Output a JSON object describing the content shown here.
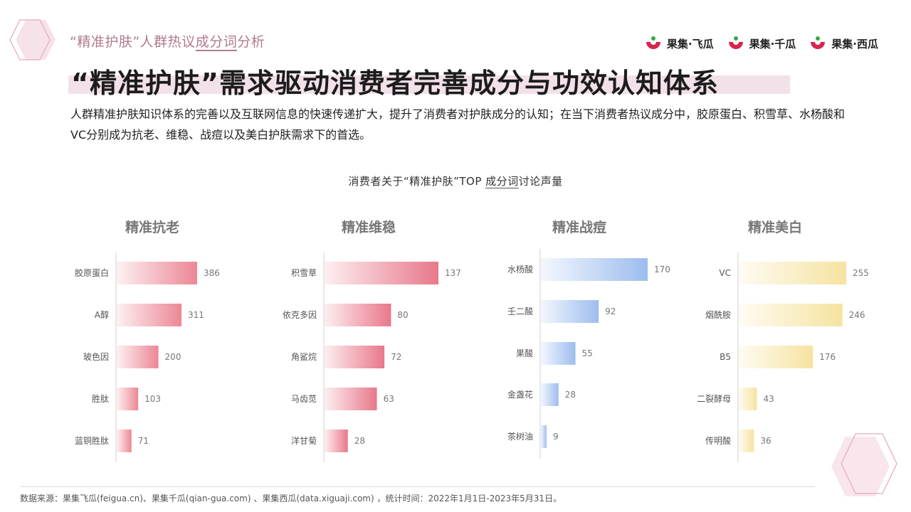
{
  "header": {
    "subtitle_pre": "“精准护肤”人群热议",
    "subtitle_underlined": "成分词",
    "subtitle_post": "分析",
    "headline": "“精准护肤”需求驱动消费者完善成分与功效认知体系",
    "description": "人群精准护肤知识体系的完善以及互联网信息的快速传递扩大，提升了消费者对护肤成分的认知；在当下消费者热议成分中，胶原蛋白、积雪草、水杨酸和VC分别成为抗老、维稳、战痘以及美白护肤需求下的首选。"
  },
  "brands": [
    {
      "label": "果集·飞瓜"
    },
    {
      "label": "果集·千瓜"
    },
    {
      "label": "果集·西瓜"
    }
  ],
  "colors": {
    "accent": "#d6264f",
    "pink_bar": "#ec8795",
    "blue_bar": "#9dbdef",
    "yellow_bar": "#f6e3a0"
  },
  "chart_header": {
    "pre": "消费者关于“精准护肤”TOP ",
    "underlined": "成分词",
    "post": "讨论声量"
  },
  "chart_data": [
    {
      "type": "bar",
      "title": "精准抗老",
      "categories": [
        "胶原蛋白",
        "A醇",
        "玻色因",
        "胜肽",
        "蓝铜胜肽"
      ],
      "values": [
        386,
        311,
        200,
        103,
        71
      ],
      "color": "#ec8795"
    },
    {
      "type": "bar",
      "title": "精准维稳",
      "categories": [
        "积雪草",
        "依克多因",
        "角鲨烷",
        "马齿苋",
        "洋甘菊"
      ],
      "values": [
        137,
        80,
        72,
        63,
        28
      ],
      "color": "#e8788a"
    },
    {
      "type": "bar",
      "title": "精准战痘",
      "categories": [
        "水杨酸",
        "壬二酸",
        "果酸",
        "金盏花",
        "茶树油"
      ],
      "values": [
        170,
        92,
        55,
        28,
        9
      ],
      "color": "#9dbdef"
    },
    {
      "type": "bar",
      "title": "精准美白",
      "categories": [
        "VC",
        "烟酰胺",
        "B5",
        "二裂酵母",
        "传明酸"
      ],
      "values": [
        255,
        246,
        176,
        43,
        36
      ],
      "color": "#f6e3a0"
    }
  ],
  "footer": {
    "source": "数据来源：果集飞瓜(feigua.cn)、果集千瓜(qian-gua.com) 、果集西瓜(data.xiguaji.com) ，统计时间：2022年1月1日-2023年5月31日。"
  }
}
